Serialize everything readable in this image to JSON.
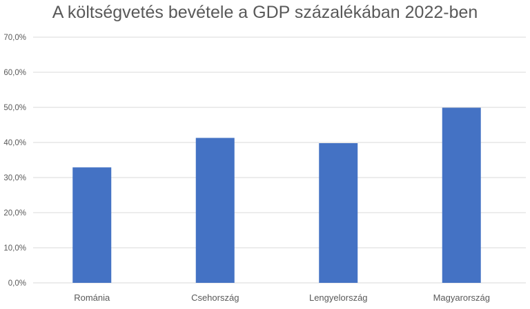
{
  "chart_data": {
    "type": "bar",
    "title": "A költségvetés bevétele a GDP százalékában 2022-ben",
    "categories": [
      "Románia",
      "Csehország",
      "Lengyelország",
      "Magyarország"
    ],
    "series": [
      {
        "values": [
          32.9,
          41.3,
          39.8,
          49.9
        ]
      }
    ],
    "ylim": [
      0,
      70
    ],
    "yticks": [
      "0,0%",
      "10,0%",
      "20,0%",
      "30,0%",
      "40,0%",
      "50,0%",
      "60,0%",
      "70,0%"
    ],
    "grid": true,
    "legend": "none",
    "bar_color": "#4472c4"
  }
}
